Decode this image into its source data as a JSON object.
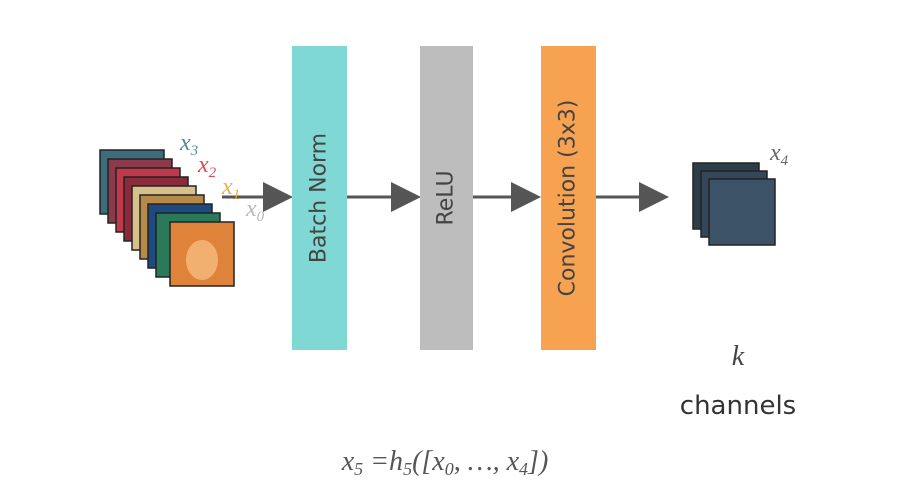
{
  "inputs": [
    {
      "base": "x",
      "sub": "3",
      "color": "#4f8a96"
    },
    {
      "base": "x",
      "sub": "2",
      "color": "#e0484f"
    },
    {
      "base": "x",
      "sub": "1",
      "color": "#e8b04a"
    },
    {
      "base": "x",
      "sub": "0",
      "color": "#b8b8b8"
    }
  ],
  "layers": [
    {
      "label": "Batch Norm",
      "color": "#7fd8d4"
    },
    {
      "label": "ReLU",
      "color": "#bdbdbd"
    },
    {
      "label": "Convolution (3x3)",
      "color": "#f7a250"
    }
  ],
  "output": {
    "base": "x",
    "sub": "4",
    "k": "k",
    "channels": "channels"
  },
  "formula": [
    {
      "t": "x"
    },
    {
      "s": "5"
    },
    {
      "t": " =h"
    },
    {
      "s": "5"
    },
    {
      "t": "([x"
    },
    {
      "s": "0"
    },
    {
      "t": ", …, x"
    },
    {
      "s": "4"
    },
    {
      "t": "])"
    }
  ]
}
